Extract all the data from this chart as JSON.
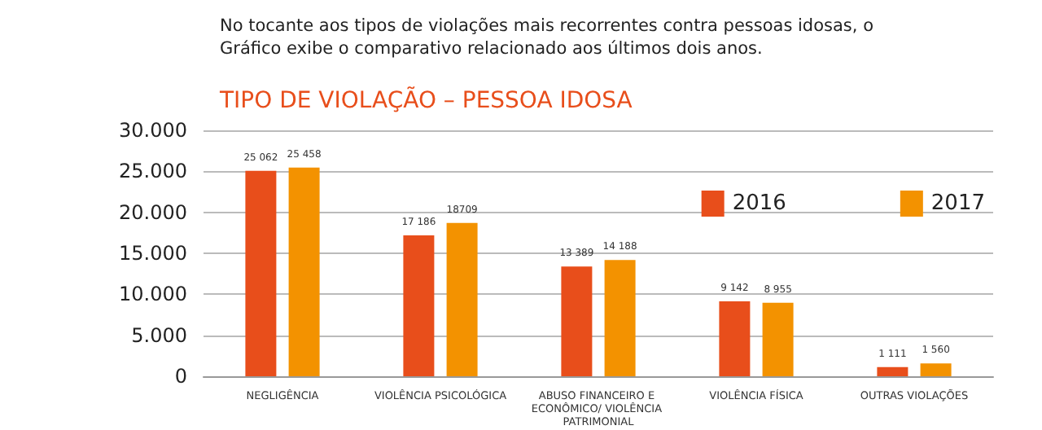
{
  "chart_data": {
    "type": "bar",
    "title": "TIPO DE VIOLAÇÃO – PESSOA IDOSA",
    "subtitle": "No tocante aos tipos de violações mais recorrentes contra pessoas idosas, o Gráfico exibe o comparativo relacionado aos últimos dois anos.",
    "categories": [
      "NEGLIGÊNCIA",
      "VIOLÊNCIA PSICOLÓGICA",
      "ABUSO FINANCEIRO E ECONÔMICO/ VIOLÊNCIA PATRIMONIAL",
      "VIOLÊNCIA FÍSICA",
      "OUTRAS VIOLAÇÕES"
    ],
    "series": [
      {
        "name": "2016",
        "color": "#e84e1b",
        "values": [
          25062,
          17186,
          13389,
          9142,
          1111
        ],
        "value_labels": [
          "25 062",
          "17 186",
          "13 389",
          "9 142",
          "1 111"
        ]
      },
      {
        "name": "2017",
        "color": "#f39200",
        "values": [
          25458,
          18709,
          14188,
          8955,
          1560
        ],
        "value_labels": [
          "25 458",
          "18709",
          "14 188",
          "8 955",
          "1 560"
        ]
      }
    ],
    "ylim": [
      0,
      30000
    ],
    "yticks": [
      {
        "value": 0,
        "label": "0"
      },
      {
        "value": 5000,
        "label": "5.000"
      },
      {
        "value": 10000,
        "label": "10.000"
      },
      {
        "value": 15000,
        "label": "15.000"
      },
      {
        "value": 20000,
        "label": "20.000"
      },
      {
        "value": 25000,
        "label": "25.000"
      },
      {
        "value": 30000,
        "label": "30.000"
      }
    ],
    "grid": "y",
    "legend": "right"
  }
}
